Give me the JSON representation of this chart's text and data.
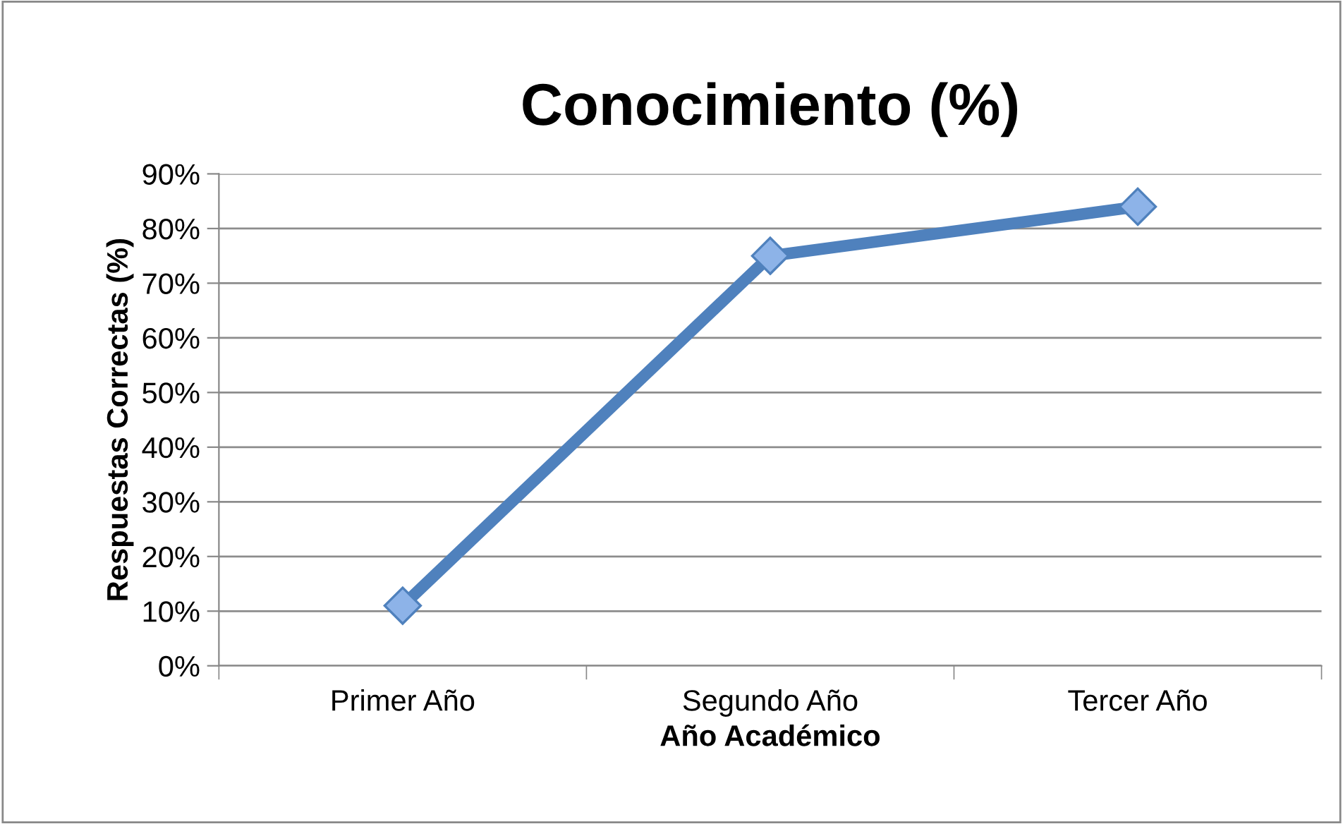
{
  "chart_data": {
    "type": "line",
    "title": "Conocimiento (%)",
    "xlabel": "Año Académico",
    "ylabel": "Respuestas Correctas (%)",
    "categories": [
      "Primer Año",
      "Segundo Año",
      "Tercer Año"
    ],
    "series": [
      {
        "color": "#4f81bd",
        "values": [
          11,
          75,
          84
        ]
      }
    ],
    "ylim": [
      0,
      90
    ],
    "yticks": [
      {
        "value": 0,
        "label": "0%"
      },
      {
        "value": 10,
        "label": "10%"
      },
      {
        "value": 20,
        "label": "20%"
      },
      {
        "value": 30,
        "label": "30%"
      },
      {
        "value": 40,
        "label": "40%"
      },
      {
        "value": 50,
        "label": "50%"
      },
      {
        "value": 60,
        "label": "60%"
      },
      {
        "value": 70,
        "label": "70%"
      },
      {
        "value": 80,
        "label": "80%"
      },
      {
        "value": 90,
        "label": "90%"
      }
    ],
    "grid": "y",
    "marker": "diamond",
    "line_style": "solid"
  }
}
